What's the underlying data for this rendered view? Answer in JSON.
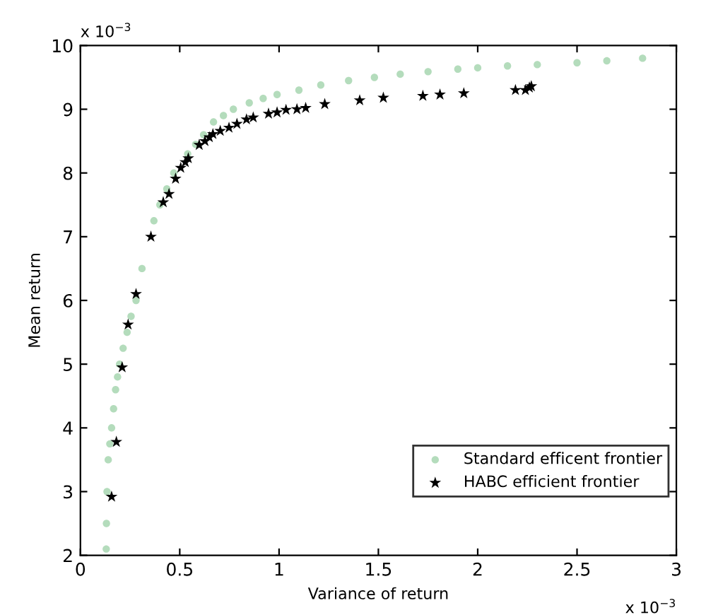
{
  "chart_data": {
    "type": "scatter",
    "xlabel": "Variance of return",
    "ylabel": "Mean return",
    "xlim": [
      0,
      3
    ],
    "ylim": [
      2,
      10
    ],
    "xticks": [
      0,
      0.5,
      1,
      1.5,
      2,
      2.5,
      3
    ],
    "yticks": [
      2,
      3,
      4,
      5,
      6,
      7,
      8,
      9,
      10
    ],
    "grid": false,
    "legend": "lower right",
    "annotations": [
      "x 10$^{−3}$",
      "x 10$^{−3}$"
    ],
    "series": [
      {
        "name": "Standard efficent frontier",
        "color": "#b4dcbc",
        "marker": "circle",
        "x": [
          0.13,
          0.131,
          0.134,
          0.14,
          0.148,
          0.157,
          0.167,
          0.177,
          0.187,
          0.197,
          0.215,
          0.235,
          0.255,
          0.28,
          0.31,
          0.345,
          0.37,
          0.4,
          0.435,
          0.47,
          0.54,
          0.58,
          0.62,
          0.67,
          0.72,
          0.77,
          0.85,
          0.92,
          0.99,
          1.1,
          1.21,
          1.35,
          1.48,
          1.61,
          1.75,
          1.9,
          2.0,
          2.15,
          2.3,
          2.5,
          2.65,
          2.83
        ],
        "values": [
          2.1,
          2.5,
          3.0,
          3.5,
          3.75,
          4.0,
          4.3,
          4.6,
          4.8,
          5.0,
          5.25,
          5.5,
          5.75,
          6.0,
          6.5,
          null,
          7.25,
          7.5,
          7.75,
          8.0,
          8.3,
          8.45,
          8.6,
          8.8,
          8.9,
          9.0,
          9.1,
          9.17,
          9.23,
          9.3,
          9.38,
          9.45,
          9.5,
          9.55,
          9.59,
          9.63,
          9.65,
          9.68,
          9.7,
          9.73,
          9.76,
          9.8
        ]
      },
      {
        "name": "HABC efficient frontier",
        "color": "#000000",
        "marker": "star",
        "x": [
          0.157,
          0.181,
          0.21,
          0.24,
          0.28,
          0.355,
          0.417,
          0.446,
          0.479,
          0.505,
          0.528,
          0.543,
          0.598,
          0.627,
          0.649,
          0.667,
          0.704,
          0.748,
          0.788,
          0.836,
          0.87,
          0.947,
          0.99,
          1.035,
          1.09,
          1.134,
          1.23,
          1.406,
          1.525,
          1.724,
          1.81,
          1.93,
          2.19,
          2.24,
          2.26,
          2.27
        ],
        "values": [
          2.92,
          3.78,
          4.95,
          5.62,
          6.1,
          7.0,
          7.54,
          7.67,
          7.91,
          8.08,
          8.17,
          8.23,
          8.44,
          8.5,
          8.56,
          8.61,
          8.66,
          8.71,
          8.77,
          8.84,
          8.87,
          8.93,
          8.95,
          8.99,
          9.0,
          9.02,
          9.08,
          9.14,
          9.18,
          9.21,
          9.23,
          9.25,
          9.3,
          9.3,
          9.34,
          9.36
        ]
      }
    ]
  }
}
